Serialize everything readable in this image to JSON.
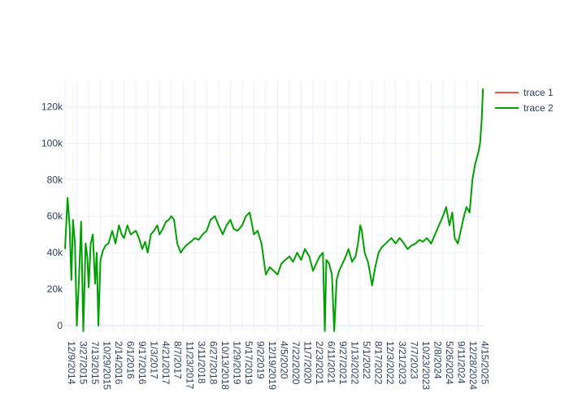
{
  "chart_data": {
    "type": "line",
    "title": "",
    "xlabel": "",
    "ylabel": "",
    "ylim": [
      -4000,
      134000
    ],
    "y_ticks": [
      0,
      20000,
      40000,
      60000,
      80000,
      100000,
      120000
    ],
    "y_tick_labels": [
      "0",
      "20k",
      "40k",
      "60k",
      "80k",
      "100k",
      "120k"
    ],
    "x_tick_labels": [
      "12/9/2014",
      "3/27/2015",
      "7/13/2015",
      "10/29/2015",
      "2/14/2016",
      "6/1/2016",
      "9/17/2016",
      "1/3/2017",
      "4/21/2017",
      "8/7/2017",
      "11/23/2017",
      "3/11/2018",
      "6/27/2018",
      "10/13/2018",
      "1/29/2019",
      "5/17/2019",
      "9/2/2019",
      "12/19/2019",
      "4/5/2020",
      "7/22/2020",
      "11/7/2020",
      "2/23/2021",
      "6/11/2021",
      "9/27/2021",
      "1/13/2022",
      "5/1/2022",
      "8/17/2022",
      "12/3/2022",
      "3/21/2023",
      "7/7/2023",
      "10/23/2023",
      "2/8/2024",
      "5/26/2024",
      "9/11/2024",
      "12/28/2024",
      "4/15/2025"
    ],
    "grid": true,
    "legend_position": "top-right",
    "series": [
      {
        "name": "trace 1",
        "color": "#EF553B",
        "x": [],
        "y": []
      },
      {
        "name": "trace 2",
        "color": "#00a000",
        "x": [
          "12/9/2014",
          "1/1/2015",
          "1/20/2015",
          "2/5/2015",
          "2/20/2015",
          "3/10/2015",
          "3/27/2015",
          "4/15/2015",
          "5/5/2015",
          "5/25/2015",
          "6/15/2015",
          "7/1/2015",
          "7/13/2015",
          "8/1/2015",
          "8/20/2015",
          "9/10/2015",
          "9/25/2015",
          "10/10/2015",
          "10/29/2015",
          "11/20/2015",
          "12/15/2015",
          "1/10/2016",
          "2/14/2016",
          "3/15/2016",
          "4/15/2016",
          "5/10/2016",
          "6/1/2016",
          "7/1/2016",
          "8/1/2016",
          "9/17/2016",
          "10/15/2016",
          "11/15/2016",
          "12/10/2016",
          "1/3/2017",
          "2/1/2017",
          "3/1/2017",
          "4/1/2017",
          "4/21/2017",
          "5/20/2017",
          "6/20/2017",
          "7/15/2017",
          "8/7/2017",
          "9/1/2017",
          "10/1/2017",
          "11/1/2017",
          "11/23/2017",
          "12/20/2017",
          "2/1/2018",
          "3/11/2018",
          "4/15/2018",
          "5/20/2018",
          "6/27/2018",
          "8/1/2018",
          "9/10/2018",
          "10/13/2018",
          "11/20/2018",
          "12/25/2018",
          "1/29/2019",
          "3/1/2019",
          "4/5/2019",
          "5/17/2019",
          "6/20/2019",
          "7/25/2019",
          "9/2/2019",
          "10/5/2019",
          "11/10/2019",
          "12/19/2019",
          "1/25/2020",
          "3/1/2020",
          "4/5/2020",
          "5/10/2020",
          "6/15/2020",
          "7/22/2020",
          "8/25/2020",
          "10/1/2020",
          "11/7/2020",
          "12/10/2020",
          "1/20/2021",
          "2/23/2021",
          "3/25/2021",
          "4/25/2021",
          "5/25/2021",
          "6/11/2021",
          "6/25/2021",
          "7/20/2021",
          "8/15/2021",
          "9/5/2021",
          "9/27/2021",
          "10/20/2021",
          "11/20/2021",
          "12/20/2021",
          "1/13/2022",
          "2/15/2022",
          "3/20/2022",
          "4/10/2022",
          "5/1/2022",
          "5/15/2022",
          "6/10/2022",
          "7/10/2022",
          "8/1/2022",
          "8/17/2022",
          "9/15/2022",
          "10/15/2022",
          "11/15/2022",
          "12/3/2022",
          "1/5/2023",
          "2/10/2023",
          "3/21/2023",
          "4/25/2023",
          "5/25/2023",
          "7/7/2023",
          "8/15/2023",
          "9/20/2023",
          "10/23/2023",
          "11/25/2023",
          "1/1/2024",
          "2/8/2024",
          "3/15/2024",
          "4/20/2024",
          "5/26/2024",
          "6/25/2024",
          "7/25/2024",
          "8/20/2024",
          "9/11/2024",
          "10/10/2024",
          "11/5/2024",
          "12/5/2024",
          "12/28/2024",
          "1/25/2025",
          "2/20/2025",
          "3/15/2025",
          "4/15/2025",
          "5/1/2025",
          "5/15/2025",
          "5/28/2025"
        ],
        "y": [
          42000,
          70000,
          55000,
          25000,
          58000,
          45000,
          0,
          25000,
          57000,
          -3000,
          45000,
          38000,
          21000,
          45000,
          50000,
          23000,
          40000,
          0,
          36000,
          41000,
          44000,
          45000,
          52000,
          45000,
          55000,
          50000,
          48000,
          55000,
          50000,
          52000,
          48000,
          42000,
          46000,
          40000,
          50000,
          52000,
          55000,
          50000,
          53000,
          57000,
          58000,
          60000,
          58000,
          45000,
          40000,
          42000,
          44000,
          46000,
          48000,
          47000,
          50000,
          52000,
          58000,
          60000,
          55000,
          50000,
          55000,
          58000,
          53000,
          52000,
          55000,
          60000,
          62000,
          50000,
          52000,
          45000,
          28000,
          32000,
          30000,
          28000,
          34000,
          36000,
          38000,
          35000,
          40000,
          36000,
          42000,
          38000,
          30000,
          34000,
          38000,
          40000,
          -3000,
          36000,
          34000,
          28000,
          -3000,
          25000,
          30000,
          34000,
          38000,
          42000,
          35000,
          38000,
          45000,
          55000,
          52000,
          40000,
          35000,
          28000,
          22000,
          32000,
          40000,
          43000,
          44000,
          46000,
          48000,
          45000,
          48000,
          46000,
          42000,
          44000,
          45000,
          47000,
          46000,
          48000,
          45000,
          50000,
          55000,
          60000,
          65000,
          55000,
          62000,
          48000,
          45000,
          52000,
          60000,
          65000,
          62000,
          80000,
          88000,
          95000,
          100000,
          112000,
          130000
        ]
      }
    ]
  }
}
